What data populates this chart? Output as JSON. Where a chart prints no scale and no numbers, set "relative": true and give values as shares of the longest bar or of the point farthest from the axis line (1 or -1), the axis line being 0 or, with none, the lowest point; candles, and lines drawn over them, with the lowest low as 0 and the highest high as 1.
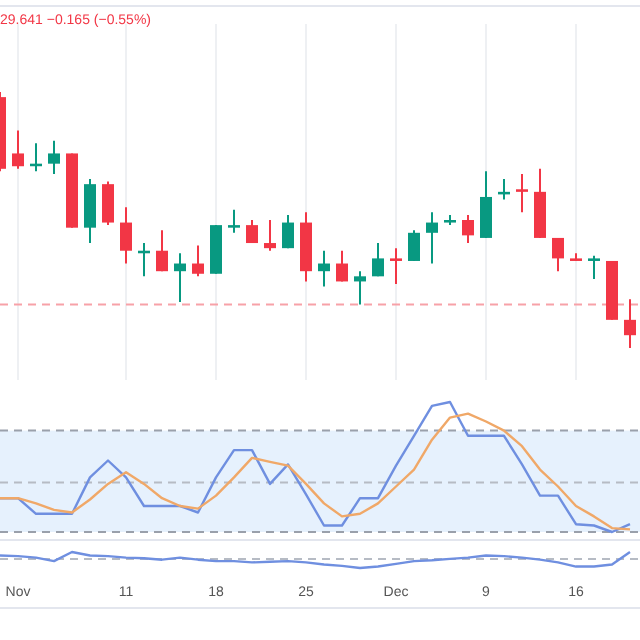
{
  "chart_data": [
    {
      "type": "candlestick",
      "subtitle": "29.641 −0.165 (−0.55%)",
      "relative": true,
      "grid": "x",
      "tick_labels": false,
      "categories": [
        null,
        null,
        null,
        null,
        null,
        null,
        null,
        null,
        null,
        null,
        null,
        null,
        null,
        null,
        null,
        null,
        null,
        null,
        null,
        null,
        null,
        null,
        null,
        null,
        null,
        null,
        null,
        null,
        null,
        null,
        null,
        null,
        null,
        null,
        null,
        null
      ],
      "ohlc": [
        [
          0.98,
          1,
          0.69,
          0.7
        ],
        [
          0.76,
          0.85,
          0.7,
          0.71
        ],
        [
          0.71,
          0.8,
          0.69,
          0.72
        ],
        [
          0.72,
          0.81,
          0.68,
          0.76
        ],
        [
          0.76,
          0.76,
          0.47,
          0.47
        ],
        [
          0.47,
          0.66,
          0.41,
          0.64
        ],
        [
          0.64,
          0.65,
          0.48,
          0.49
        ],
        [
          0.49,
          0.55,
          0.33,
          0.38
        ],
        [
          0.37,
          0.41,
          0.28,
          0.38
        ],
        [
          0.38,
          0.46,
          0.3,
          0.3
        ],
        [
          0.3,
          0.37,
          0.18,
          0.33
        ],
        [
          0.33,
          0.4,
          0.28,
          0.29
        ],
        [
          0.29,
          0.48,
          0.29,
          0.48
        ],
        [
          0.47,
          0.54,
          0.45,
          0.48
        ],
        [
          0.48,
          0.5,
          0.41,
          0.41
        ],
        [
          0.41,
          0.5,
          0.38,
          0.39
        ],
        [
          0.39,
          0.52,
          0.39,
          0.49
        ],
        [
          0.49,
          0.53,
          0.26,
          0.3
        ],
        [
          0.3,
          0.38,
          0.24,
          0.33
        ],
        [
          0.33,
          0.38,
          0.26,
          0.26
        ],
        [
          0.26,
          0.3,
          0.17,
          0.28
        ],
        [
          0.28,
          0.41,
          0.28,
          0.35
        ],
        [
          0.35,
          0.39,
          0.25,
          0.34
        ],
        [
          0.34,
          0.46,
          0.34,
          0.45
        ],
        [
          0.45,
          0.53,
          0.33,
          0.49
        ],
        [
          0.49,
          0.52,
          0.48,
          0.5
        ],
        [
          0.5,
          0.52,
          0.41,
          0.44
        ],
        [
          0.43,
          0.69,
          0.43,
          0.59
        ],
        [
          0.6,
          0.66,
          0.58,
          0.61
        ],
        [
          0.62,
          0.68,
          0.53,
          0.61
        ],
        [
          0.61,
          0.7,
          0.43,
          0.43
        ],
        [
          0.43,
          0.43,
          0.3,
          0.35
        ],
        [
          0.35,
          0.37,
          0.34,
          0.34
        ],
        [
          0.34,
          0.36,
          0.27,
          0.35
        ],
        [
          0.34,
          0.34,
          0.11,
          0.11
        ],
        [
          0.11,
          0.19,
          0,
          0.05
        ]
      ],
      "ref_lines": [
        {
          "axis": "y",
          "value": 0.17,
          "color": "#f7a1a8",
          "line_style": "dashed"
        }
      ]
    },
    {
      "type": "line",
      "relative": true,
      "tick_labels": false,
      "categories": [
        null,
        null,
        null,
        null,
        null,
        null,
        null,
        null,
        null,
        null,
        null,
        null,
        null,
        null,
        null,
        null,
        null,
        null,
        null,
        null,
        null,
        null,
        null,
        null,
        null,
        null,
        null,
        null,
        null,
        null,
        null,
        null,
        null,
        null,
        null,
        null
      ],
      "series": [
        {
          "color": "#6f8fe0",
          "values": [
            0.26,
            0.26,
            0.14,
            0.14,
            0.14,
            0.42,
            0.55,
            0.42,
            0.2,
            0.2,
            0.2,
            0.15,
            0.42,
            0.63,
            0.63,
            0.37,
            0.52,
            0.29,
            0.05,
            0.05,
            0.26,
            0.26,
            0.51,
            0.74,
            0.97,
            1,
            0.74,
            0.74,
            0.74,
            0.52,
            0.28,
            0.28,
            0.06,
            0.05,
            0,
            0.06
          ]
        },
        {
          "color": "#f0a868",
          "values": [
            0.26,
            0.26,
            0.22,
            0.17,
            0.15,
            0.25,
            0.37,
            0.46,
            0.37,
            0.26,
            0.2,
            0.18,
            0.28,
            0.42,
            0.57,
            0.54,
            0.51,
            0.37,
            0.22,
            0.12,
            0.14,
            0.22,
            0.35,
            0.48,
            0.71,
            0.88,
            0.91,
            0.85,
            0.78,
            0.66,
            0.48,
            0.35,
            0.2,
            0.12,
            0.03,
            0.02
          ]
        }
      ],
      "bands": [
        {
          "axis": "y",
          "from": 0,
          "to": 0.78,
          "color": "#e6f1fd"
        }
      ],
      "ref_lines": [
        {
          "axis": "y",
          "value": 0.78,
          "color": "#9aa0ab",
          "line_style": "dashed"
        },
        {
          "axis": "y",
          "value": 0.38,
          "color": "#b6bbc4",
          "line_style": "dashed"
        },
        {
          "axis": "y",
          "value": 0,
          "color": "#9aa0ab",
          "line_style": "dashed"
        }
      ]
    },
    {
      "type": "line",
      "relative": true,
      "tick_labels": "x",
      "categories": [
        null,
        "Nov",
        null,
        null,
        null,
        null,
        null,
        "11",
        null,
        null,
        null,
        null,
        "18",
        null,
        null,
        null,
        null,
        "25",
        null,
        null,
        null,
        null,
        "Dec",
        null,
        null,
        null,
        null,
        "9",
        null,
        null,
        null,
        null,
        "16",
        null,
        null,
        null
      ],
      "series": [
        {
          "color": "#6f8fe0",
          "values": [
            0.78,
            0.74,
            0.65,
            0.43,
            1,
            0.78,
            0.74,
            0.65,
            0.61,
            0.52,
            0.65,
            0.52,
            0.43,
            0.43,
            0.35,
            0.39,
            0.43,
            0.35,
            0.22,
            0.13,
            0,
            0.09,
            0.26,
            0.43,
            0.48,
            0.57,
            0.65,
            0.78,
            0.74,
            0.65,
            0.52,
            0.35,
            0.09,
            0.09,
            0.22,
            1
          ]
        }
      ],
      "ref_lines": [
        {
          "axis": "y",
          "value": 0.57,
          "color": "#b6bbc4",
          "line_style": "dashed"
        }
      ]
    }
  ]
}
